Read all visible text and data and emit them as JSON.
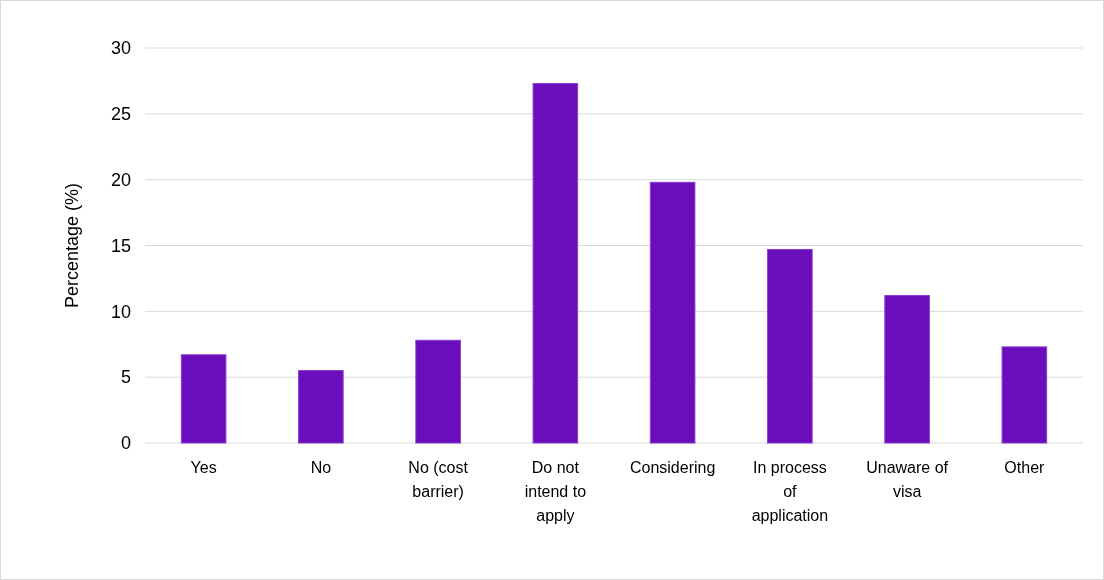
{
  "chart_data": {
    "type": "bar",
    "ylabel": "Percentage (%)",
    "categories": [
      "Yes",
      "No",
      "No (cost barrier)",
      "Do not intend to apply",
      "Considering",
      "In process of application",
      "Unaware of visa",
      "Other"
    ],
    "values": [
      6.7,
      5.5,
      7.8,
      27.3,
      19.8,
      14.7,
      11.2,
      7.3
    ],
    "color": "#6a0dba",
    "ylim": [
      0,
      30
    ],
    "yticks": [
      0,
      5,
      10,
      15,
      20,
      25,
      30
    ],
    "grid": "y"
  }
}
